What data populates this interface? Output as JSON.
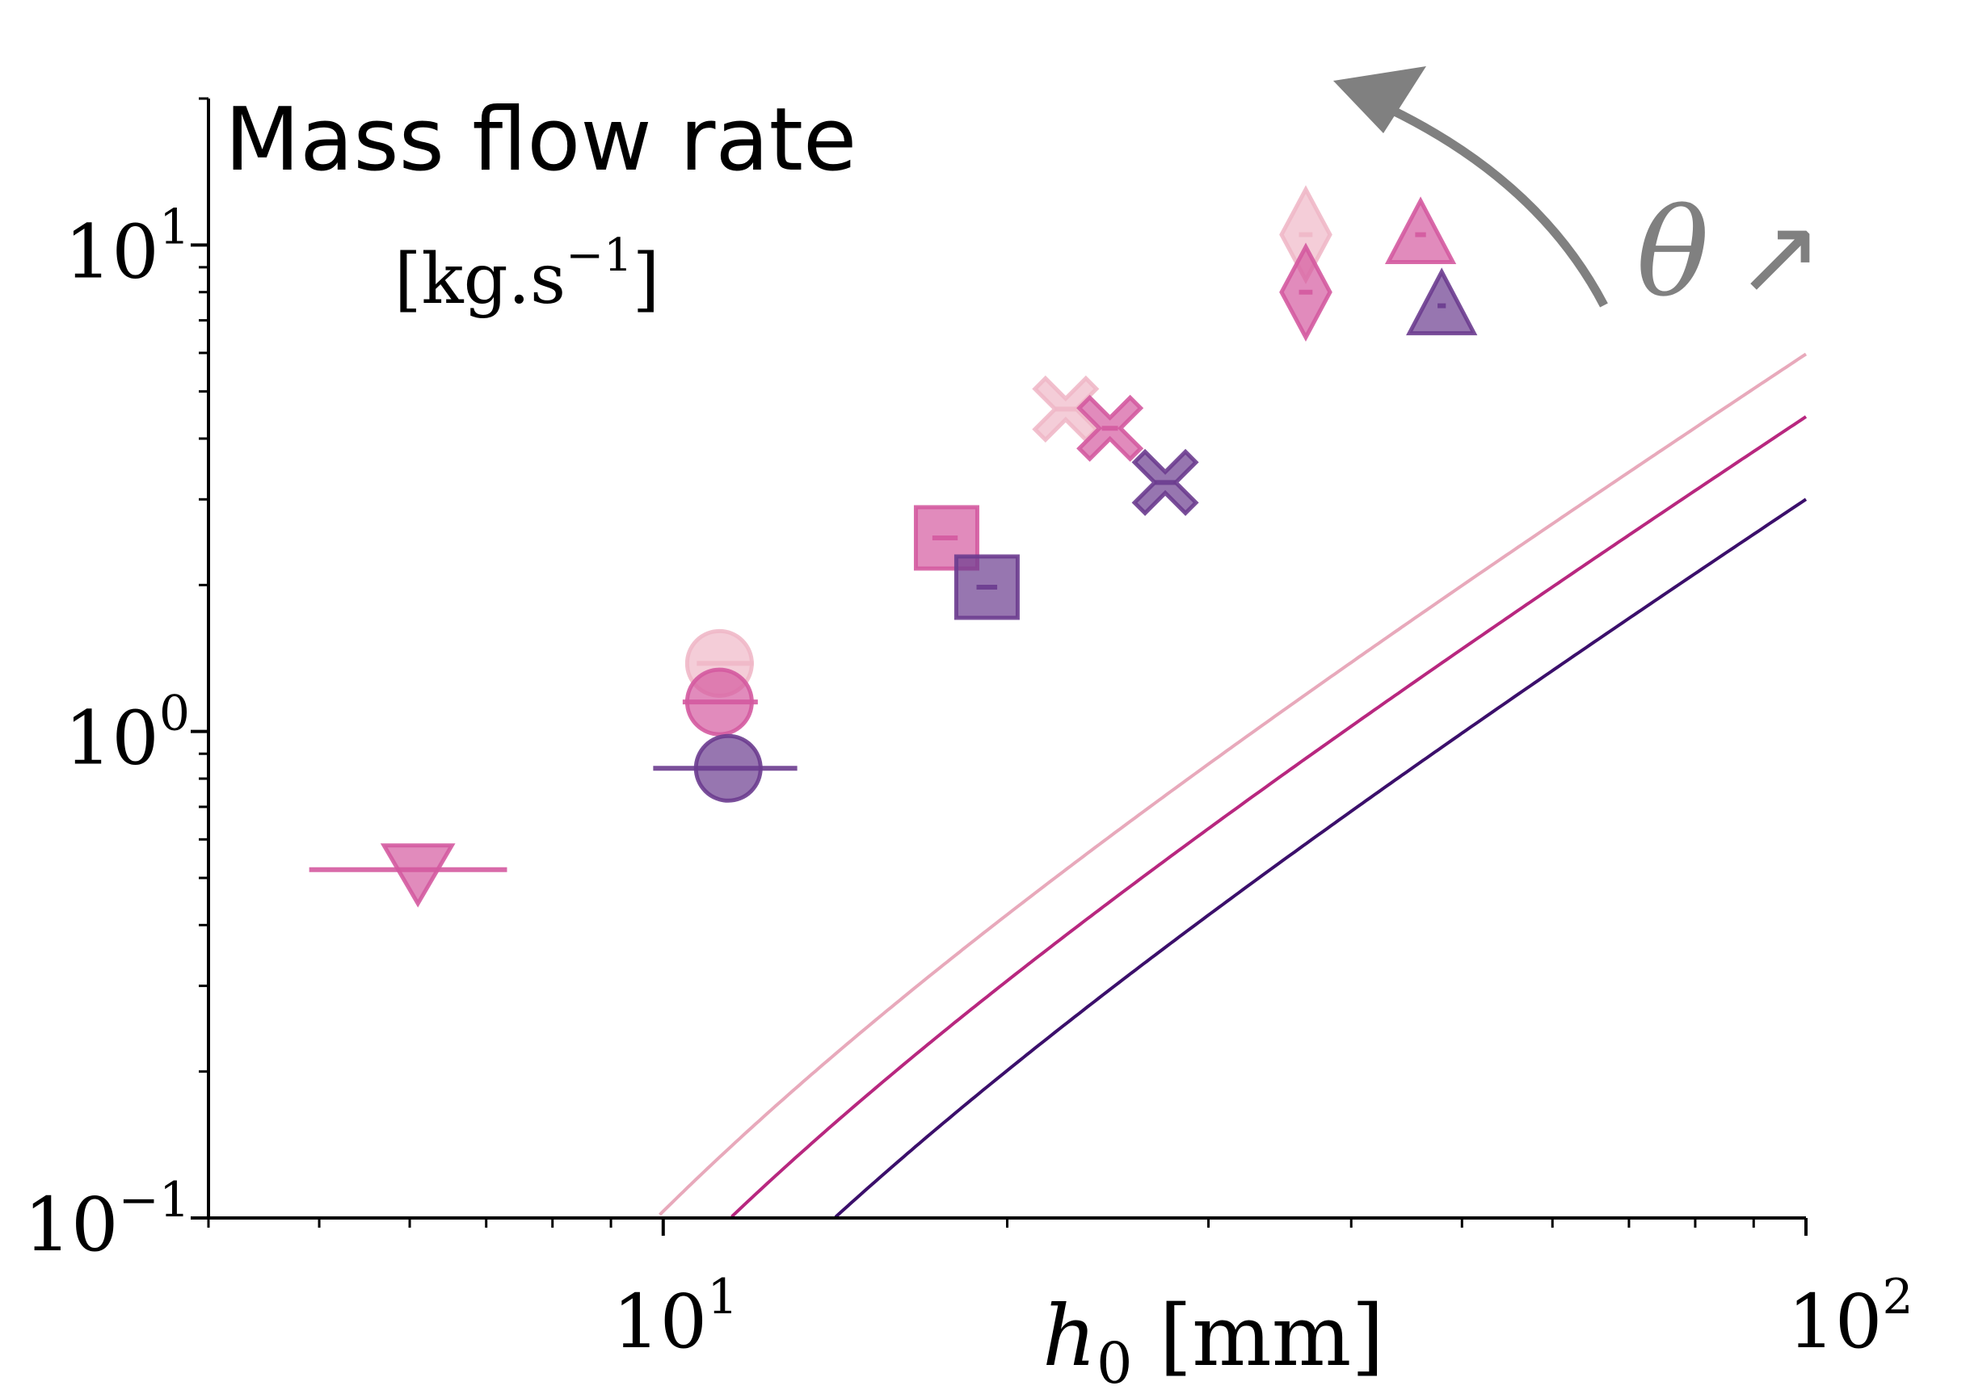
{
  "chart_data": {
    "type": "scatter",
    "title": "Mass flow rate",
    "units": "[kg.s",
    "units_exp": "−1",
    "units_close": "]",
    "xlabel_var": "h",
    "xlabel_sub": "0",
    "xlabel_unit": " [mm]",
    "xscale": "log",
    "yscale": "log",
    "xlim": [
      4.0,
      100.0
    ],
    "ylim": [
      0.1,
      20.0
    ],
    "x_ticks": [
      {
        "value": 10,
        "base": "10",
        "exp": "1"
      },
      {
        "value": 100,
        "base": "10",
        "exp": "2"
      }
    ],
    "y_ticks": [
      {
        "value": 0.1,
        "base": "10",
        "exp": "−1"
      },
      {
        "value": 1,
        "base": "10",
        "exp": "0"
      },
      {
        "value": 10,
        "base": "10",
        "exp": "1"
      }
    ],
    "annotation": {
      "symbol": "θ",
      "arrow": "↗"
    },
    "colors": {
      "light": "#e8a9bb",
      "mid": "#b8277f",
      "dark": "#3b0f6b",
      "light_marker": "#f0b8c8",
      "mid_marker": "#d45aa0",
      "dark_marker": "#6b3c8f",
      "annotation": "#808080"
    },
    "fit_curves": [
      {
        "name": "light",
        "k": 0.0063,
        "x0": 3.55
      },
      {
        "name": "mid",
        "k": 0.0047,
        "x0": 3.77
      },
      {
        "name": "dark",
        "k": 0.0032,
        "x0": 4.2
      }
    ],
    "series": [
      {
        "name": "light",
        "points": [
          {
            "marker": "circle",
            "x": 11.2,
            "y": 1.38,
            "xerr": [
              10.7,
              12.0
            ]
          },
          {
            "marker": "x",
            "x": 22.5,
            "y": 4.6,
            "xerr": [
              22.0,
              23.0
            ]
          },
          {
            "marker": "diamond",
            "x": 36.5,
            "y": 10.5,
            "xerr": [
              36.0,
              37.0
            ]
          }
        ]
      },
      {
        "name": "mid",
        "points": [
          {
            "marker": "triangle_down",
            "x": 6.1,
            "y": 0.52,
            "xerr": [
              4.9,
              7.3
            ]
          },
          {
            "marker": "circle",
            "x": 11.2,
            "y": 1.15,
            "xerr": [
              10.4,
              12.1
            ]
          },
          {
            "marker": "square",
            "x": 17.7,
            "y": 2.5,
            "xerr": [
              17.2,
              18.1
            ]
          },
          {
            "marker": "x",
            "x": 24.6,
            "y": 4.2,
            "xerr": [
              24.2,
              25.0
            ]
          },
          {
            "marker": "diamond",
            "x": 36.5,
            "y": 8.0,
            "xerr": [
              36.0,
              37.0
            ]
          },
          {
            "marker": "triangle_up",
            "x": 46.0,
            "y": 10.5,
            "xerr": [
              45.5,
              46.5
            ]
          }
        ]
      },
      {
        "name": "dark",
        "points": [
          {
            "marker": "circle",
            "x": 11.4,
            "y": 0.84,
            "xerr": [
              9.8,
              13.1
            ]
          },
          {
            "marker": "square",
            "x": 19.2,
            "y": 1.98,
            "xerr": [
              18.8,
              19.6
            ]
          },
          {
            "marker": "x",
            "x": 27.5,
            "y": 3.25,
            "xerr": [
              26.9,
              28.1
            ]
          },
          {
            "marker": "triangle_up",
            "x": 48.0,
            "y": 7.5,
            "xerr": [
              47.6,
              48.4
            ]
          }
        ]
      }
    ]
  }
}
